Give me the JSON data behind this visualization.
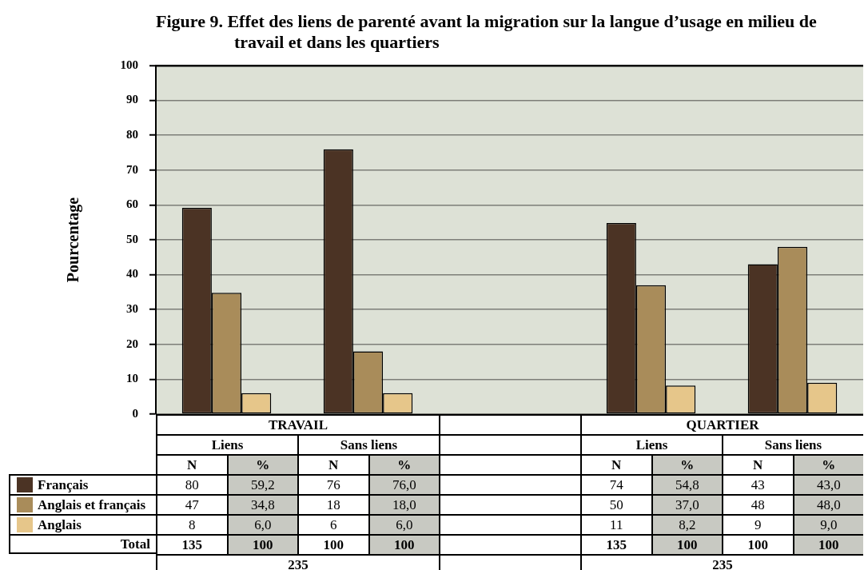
{
  "chart_data": {
    "type": "bar",
    "title": "Figure 9. Effet des liens de parenté avant la migration sur la langue d’usage en milieu de travail et dans les quartiers",
    "ylabel": "Pourcentage",
    "categories": [
      "Liens",
      "Sans liens",
      null,
      "Liens",
      "Sans liens"
    ],
    "series": [
      {
        "name": "Français",
        "color": "#4b3324",
        "values": [
          59.2,
          76.0,
          null,
          54.8,
          43.0
        ],
        "value_labels": [
          "59,2",
          "76,0",
          null,
          "54,8",
          "43,0"
        ]
      },
      {
        "name": "Anglais et français",
        "color": "#a98c5a",
        "values": [
          34.8,
          18.0,
          null,
          37.0,
          48.0
        ],
        "value_labels": [
          "34,8",
          "18,0",
          null,
          "37,0",
          "48,0"
        ]
      },
      {
        "name": "Anglais",
        "color": "#e6c68a",
        "values": [
          6.0,
          6.0,
          null,
          8.2,
          9.0
        ],
        "value_labels": [
          "6,0",
          "6,0",
          null,
          "8,2",
          "9,0"
        ]
      }
    ],
    "ylim": [
      0,
      100
    ],
    "yticks": [
      0,
      10,
      20,
      30,
      40,
      50,
      60,
      70,
      80,
      90,
      100
    ],
    "grid": "y",
    "legend": "bottom left",
    "annotations": [
      "TRAVAIL",
      "QUARTIER",
      "N",
      "%",
      "80",
      "76",
      "74",
      "43",
      "47",
      "18",
      "50",
      "48",
      "8",
      "6",
      "11",
      "9",
      "Total",
      "135",
      "100",
      "100",
      "100",
      "135",
      "100",
      "100",
      "100",
      "235",
      "235"
    ]
  }
}
